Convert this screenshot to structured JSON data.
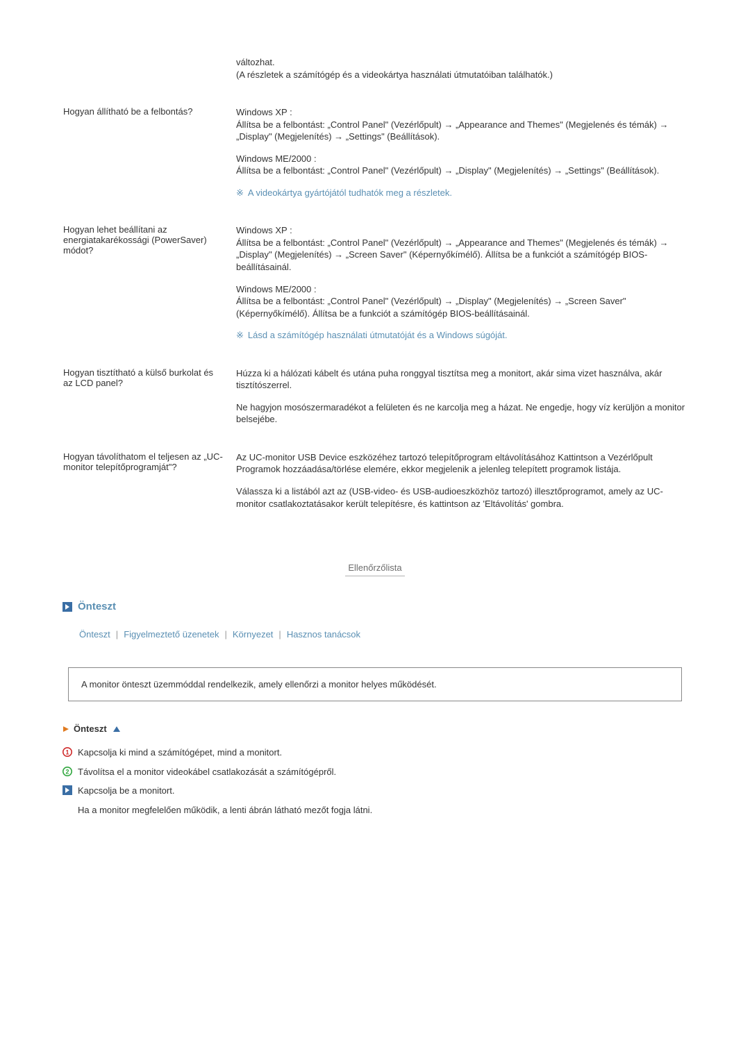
{
  "colors": {
    "text": "#333333",
    "accent": "#5a8fb3",
    "border": "#888888",
    "checklist_line": "#b0b0b0",
    "checklist_text": "#6c6c6c",
    "bg": "#ffffff",
    "red": "#cf2a2a",
    "green": "#2fa63d",
    "orange": "#e07a1f",
    "blue_fill": "#3a6ea5"
  },
  "qa": [
    {
      "question": "",
      "answers": [
        "változhat.\n(A részletek a számítógép és a videokártya használati útmutatóiban találhatók.)"
      ],
      "notes": []
    },
    {
      "question": "Hogyan állítható be a felbontás?",
      "answers": [
        "Windows XP :\nÁllítsa be a felbontást: „Control Panel\" (Vezérlőpult) → „Appearance and Themes\" (Megjelenés és témák) → „Display\" (Megjelenítés) → „Settings\" (Beállítások).",
        "Windows ME/2000 :\nÁllítsa be a felbontást: „Control Panel\" (Vezérlőpult) → „Display\" (Megjelenítés) → „Settings\" (Beállítások)."
      ],
      "notes": [
        "A videokártya gyártójától tudhatók meg a részletek."
      ]
    },
    {
      "question": "Hogyan lehet beállítani az energiatakarékossági (PowerSaver) módot?",
      "answers": [
        "Windows XP :\nÁllítsa be a felbontást: „Control Panel\" (Vezérlőpult) → „Appearance and Themes\" (Megjelenés és témák) → „Display\" (Megjelenítés) → „Screen Saver\" (Képernyőkímélő). Állítsa be a funkciót a számítógép BIOS-beállításainál.",
        "Windows ME/2000 :\nÁllítsa be a felbontást: „Control Panel\" (Vezérlőpult) → „Display\" (Megjelenítés) → „Screen Saver\" (Képernyőkímélő). Állítsa be a funkciót a számítógép BIOS-beállításainál."
      ],
      "notes": [
        "Lásd a számítógép használati útmutatóját és a Windows súgóját."
      ]
    },
    {
      "question": "Hogyan tisztítható a külső burkolat és az LCD panel?",
      "answers": [
        "Húzza ki a hálózati kábelt és utána puha ronggyal tisztítsa meg a monitort, akár sima vizet használva, akár tisztítószerrel.",
        "Ne hagyjon mosószermaradékot a felületen és ne karcolja meg a házat. Ne engedje, hogy víz kerüljön a monitor belsejébe."
      ],
      "notes": []
    },
    {
      "question": "Hogyan távolíthatom el teljesen az „UC-monitor telepítőprogramját\"?",
      "answers": [
        "Az UC-monitor USB Device eszközéhez tartozó telepítőprogram eltávolításához Kattintson a Vezérlőpult Programok hozzáadása/törlése elemére, ekkor megjelenik a jelenleg telepített programok listája.",
        "Válassza ki a listából azt az (USB-video- és USB-audioeszközhöz tartozó) illesztőprogramot, amely az UC-monitor csatlakoztatásakor került telepítésre, és kattintson az 'Eltávolítás' gombra."
      ],
      "notes": []
    }
  ],
  "checklist_label": "Ellenőrzőlista",
  "section_title": "Önteszt",
  "nav": [
    "Önteszt",
    "Figyelmeztető üzenetek",
    "Környezet",
    "Hasznos tanácsok"
  ],
  "intro_box": "A monitor önteszt üzemmóddal rendelkezik, amely ellenőrzi a monitor helyes működését.",
  "sub_title": "Önteszt",
  "steps": [
    {
      "marker": "1",
      "color": "#cf2a2a",
      "text": "Kapcsolja ki mind a számítógépet, mind a monitort."
    },
    {
      "marker": "2",
      "color": "#2fa63d",
      "text": "Távolítsa el a monitor videokábel csatlakozását a számítógépről."
    },
    {
      "marker": "arrow",
      "color": "#3a6ea5",
      "text": "Kapcsolja be a monitort."
    }
  ],
  "step_sub": "Ha a monitor megfelelően működik, a lenti ábrán látható mezőt fogja látni.",
  "note_marker": "※"
}
